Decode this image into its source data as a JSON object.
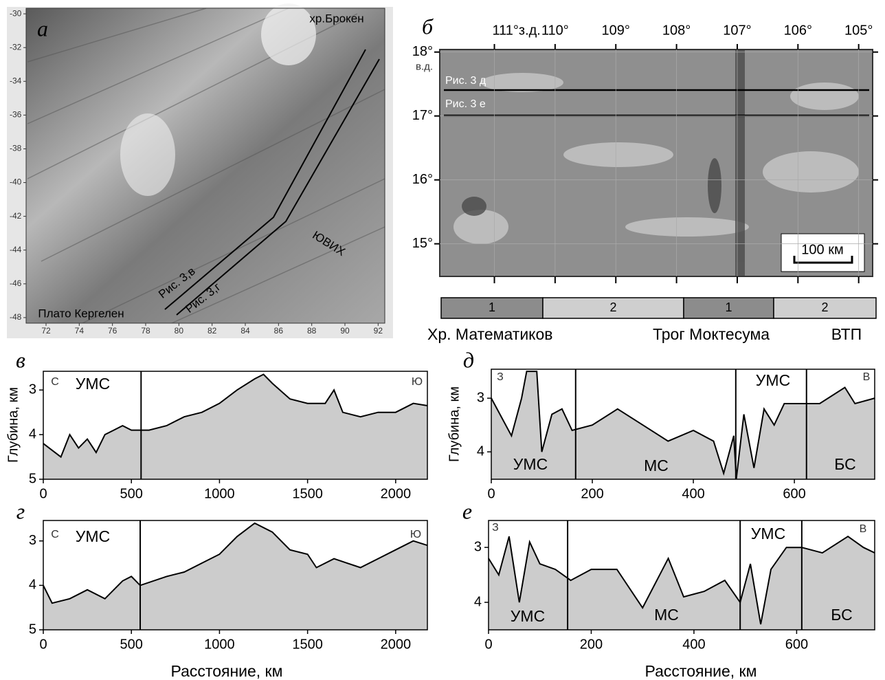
{
  "chart_data": [
    {
      "type": "map",
      "panel": "а",
      "xlim": [
        70.8,
        92.4
      ],
      "ylim": [
        -48.33,
        -29.67
      ],
      "xticks": [
        72,
        74,
        76,
        78,
        80,
        82,
        84,
        86,
        88,
        90,
        92
      ],
      "yticks": [
        -30,
        -32,
        -34,
        -36,
        -38,
        -40,
        -42,
        -44,
        -46,
        -48
      ],
      "annotations": [
        "хр.Брокен",
        "Плато Кергелен",
        "ЮВИХ",
        "Рис. 3,в",
        "Рис. 3,г"
      ]
    },
    {
      "type": "map",
      "panel": "б",
      "xlim": [
        111.9,
        104.77
      ],
      "ylim": [
        14.49,
        18.04
      ],
      "xticks": [
        {
          "value": 111,
          "label": "111°з.д."
        },
        {
          "value": 110,
          "label": "110°"
        },
        {
          "value": 109,
          "label": "109°"
        },
        {
          "value": 108,
          "label": "108°"
        },
        {
          "value": 107,
          "label": "107°"
        },
        {
          "value": 106,
          "label": "106°"
        },
        {
          "value": 105,
          "label": "105°"
        }
      ],
      "yticks": [
        {
          "value": 18,
          "label": "18°"
        },
        {
          "value": 17,
          "label": "17°"
        },
        {
          "value": 16,
          "label": "16°"
        },
        {
          "value": 15,
          "label": "15°"
        }
      ],
      "ytick_note": "в.д.",
      "annotations": [
        "Рис. 3 д",
        "Рис. 3 е",
        "100 км"
      ],
      "legend_segments": [
        "1",
        "2",
        "1",
        "2"
      ],
      "legend_colors": [
        "#8c8c8c",
        "#cfcfcf",
        "#8c8c8c",
        "#cfcfcf"
      ],
      "legend_names": [
        "Хр. Математиков",
        "Трог Моктесума",
        "ВТП"
      ]
    },
    {
      "type": "area",
      "panel": "в",
      "ylabel": "Глубина, км",
      "color": "#cccccc",
      "xlim": [
        0,
        2180
      ],
      "ylim": [
        5,
        2.58
      ],
      "xticks": [
        0,
        500,
        1000,
        1500,
        2000
      ],
      "yticks": [
        3,
        4,
        5
      ],
      "x": [
        0,
        100,
        150,
        200,
        250,
        300,
        350,
        400,
        450,
        500,
        550,
        600,
        700,
        800,
        900,
        1000,
        1100,
        1200,
        1250,
        1300,
        1400,
        1500,
        1600,
        1650,
        1700,
        1800,
        1900,
        2000,
        2100,
        2180
      ],
      "values": [
        4.2,
        4.5,
        4.0,
        4.3,
        4.1,
        4.4,
        4.0,
        3.9,
        3.8,
        3.9,
        3.9,
        3.9,
        3.8,
        3.6,
        3.5,
        3.3,
        3.0,
        2.75,
        2.65,
        2.85,
        3.2,
        3.3,
        3.3,
        3.0,
        3.5,
        3.6,
        3.5,
        3.5,
        3.3,
        3.35
      ],
      "dividers": [
        555
      ],
      "annotations": [
        "С",
        "УМС",
        "Ю"
      ]
    },
    {
      "type": "area",
      "panel": "г",
      "ylabel": "",
      "xlabel": "Расстояние, км",
      "color": "#cccccc",
      "xlim": [
        0,
        2180
      ],
      "ylim": [
        5,
        2.54
      ],
      "xticks": [
        0,
        500,
        1000,
        1500,
        2000
      ],
      "yticks": [
        3,
        4,
        5
      ],
      "x": [
        0,
        50,
        150,
        250,
        350,
        450,
        500,
        550,
        700,
        800,
        900,
        1000,
        1100,
        1200,
        1300,
        1400,
        1500,
        1550,
        1650,
        1800,
        1900,
        2000,
        2100,
        2180
      ],
      "values": [
        4.0,
        4.4,
        4.3,
        4.1,
        4.3,
        3.9,
        3.8,
        4.0,
        3.8,
        3.7,
        3.5,
        3.3,
        2.9,
        2.6,
        2.8,
        3.2,
        3.3,
        3.6,
        3.4,
        3.6,
        3.4,
        3.2,
        3.0,
        3.1
      ],
      "dividers": [
        550
      ],
      "annotations": [
        "С",
        "УМС",
        "Ю"
      ]
    },
    {
      "type": "area",
      "panel": "д",
      "ylabel": "Глубина, км",
      "color": "#cccccc",
      "xlim": [
        0,
        759
      ],
      "ylim": [
        4.51,
        2.46
      ],
      "xticks": [
        0,
        200,
        400,
        600
      ],
      "yticks": [
        3,
        4
      ],
      "x": [
        0,
        40,
        60,
        70,
        90,
        100,
        120,
        140,
        160,
        200,
        250,
        300,
        350,
        400,
        440,
        460,
        480,
        485,
        500,
        520,
        540,
        560,
        580,
        620,
        650,
        700,
        720,
        759
      ],
      "values": [
        3.0,
        3.7,
        3.0,
        2.5,
        2.5,
        4.0,
        3.3,
        3.2,
        3.6,
        3.5,
        3.2,
        3.5,
        3.8,
        3.6,
        3.8,
        4.4,
        3.7,
        4.5,
        3.3,
        4.3,
        3.2,
        3.5,
        3.1,
        3.1,
        3.1,
        2.8,
        3.1,
        3.0
      ],
      "dividers": [
        167,
        484,
        624
      ],
      "annotations": [
        "З",
        "УМС",
        "МС",
        "УМС",
        "БС",
        "В"
      ]
    },
    {
      "type": "area",
      "panel": "е",
      "xlabel": "Расстояние, км",
      "color": "#cccccc",
      "xlim": [
        0,
        752
      ],
      "ylim": [
        4.5,
        2.51
      ],
      "xticks": [
        0,
        200,
        400,
        600
      ],
      "yticks": [
        3,
        4
      ],
      "x": [
        0,
        20,
        40,
        60,
        80,
        100,
        130,
        160,
        200,
        250,
        300,
        350,
        380,
        420,
        460,
        490,
        510,
        530,
        550,
        580,
        610,
        650,
        700,
        730,
        752
      ],
      "values": [
        3.2,
        3.5,
        2.8,
        4.0,
        2.9,
        3.3,
        3.4,
        3.6,
        3.4,
        3.4,
        4.1,
        3.2,
        3.9,
        3.8,
        3.6,
        4.0,
        3.3,
        4.4,
        3.4,
        3.0,
        3.0,
        3.1,
        2.8,
        3.0,
        3.1
      ],
      "dividers": [
        154,
        490,
        610
      ],
      "annotations": [
        "З",
        "УМС",
        "МС",
        "УМС",
        "БС",
        "В"
      ]
    }
  ]
}
